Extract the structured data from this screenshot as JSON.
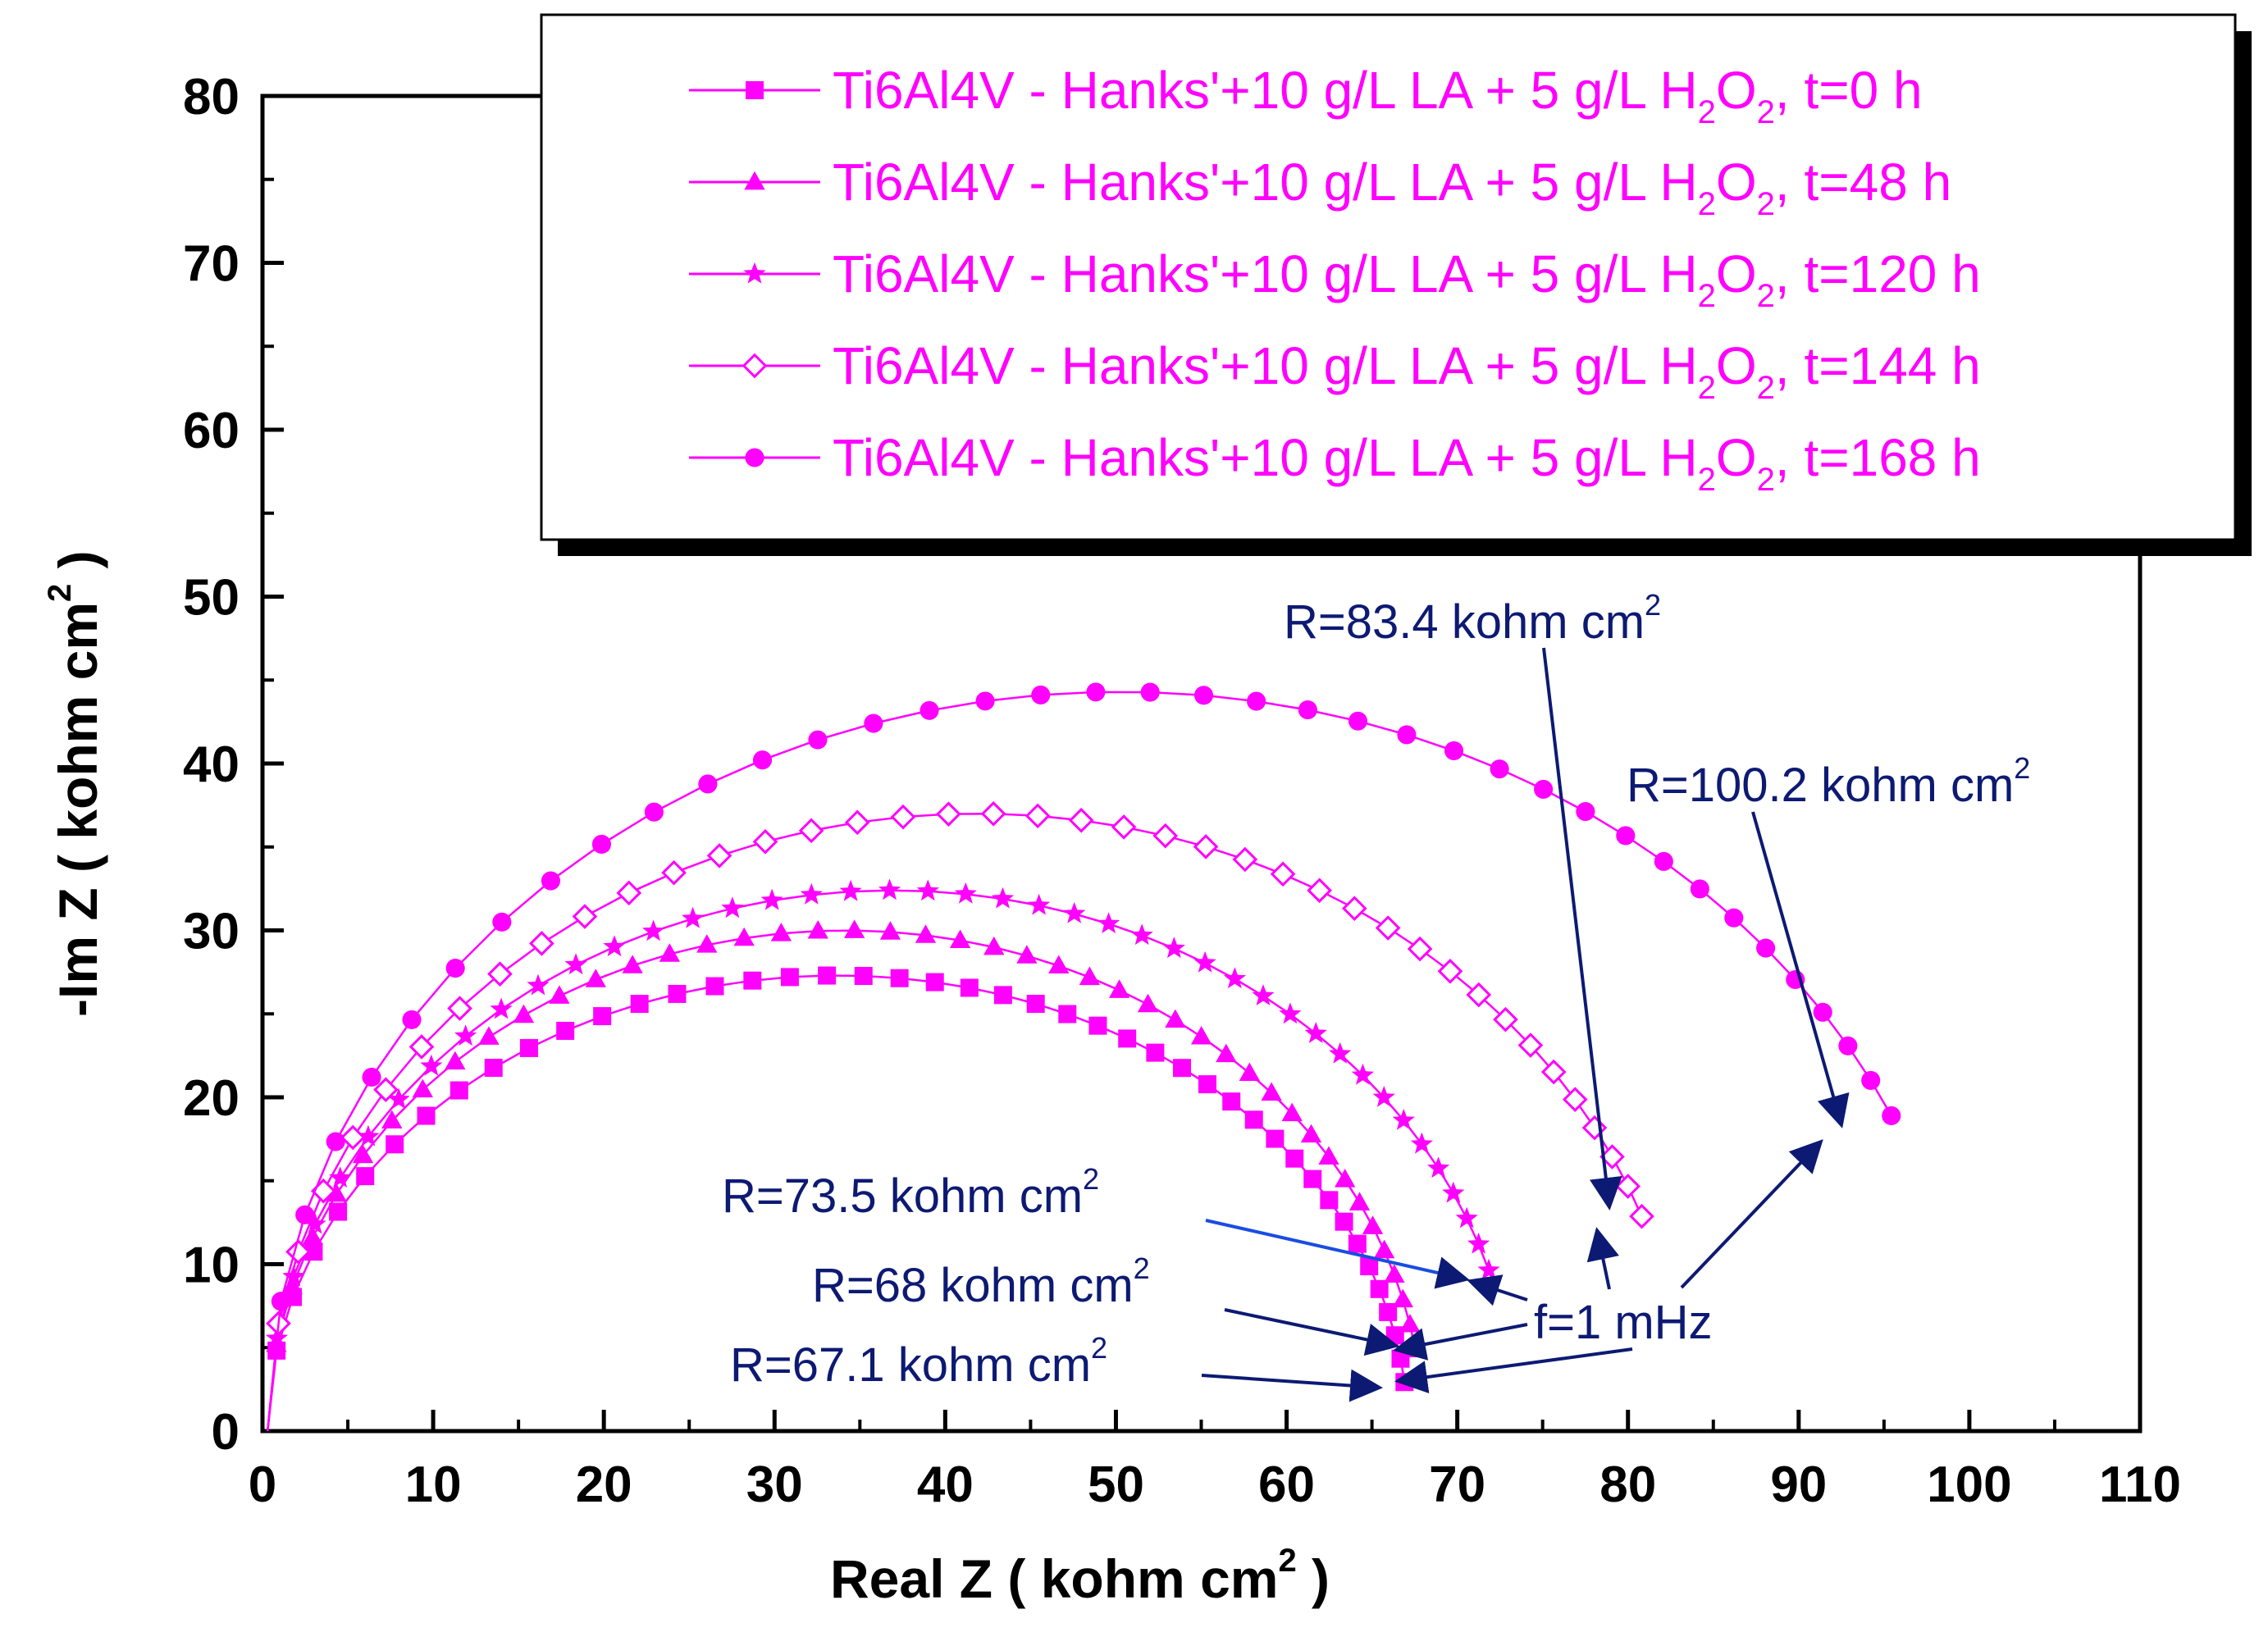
{
  "chart_data": {
    "type": "line",
    "title": "",
    "xlabel": "Real Z ( kohm cm",
    "ylabel": "-Im Z ( kohm cm",
    "unit_superscript": "2",
    "unit_close": " )",
    "xlim": [
      0,
      110
    ],
    "ylim": [
      0,
      80
    ],
    "x_ticks": [
      "0",
      "10",
      "20",
      "30",
      "40",
      "50",
      "60",
      "70",
      "80",
      "90",
      "100",
      "110"
    ],
    "y_ticks": [
      "0",
      "10",
      "20",
      "30",
      "40",
      "50",
      "60",
      "70",
      "80"
    ],
    "x_tick_values": [
      0,
      10,
      20,
      30,
      40,
      50,
      60,
      70,
      80,
      90,
      100,
      110
    ],
    "y_tick_values": [
      0,
      10,
      20,
      30,
      40,
      50,
      60,
      70,
      80
    ],
    "grid": false,
    "legend_position": "top-right",
    "series_color": "#ff00ff",
    "annotation_color": "#0d1a73",
    "series": [
      {
        "legend_prefix": "Ti6Al4V - Hanks'+10 g/L LA + 5 g/L H",
        "legend_sub1": "2",
        "legend_mid": "O",
        "legend_sub2": "2",
        "legend_suffix": ", t=0 h",
        "marker": "square",
        "R": 67.1,
        "peak": 27.3,
        "start_x": 0.3,
        "points": 44
      },
      {
        "legend_prefix": "Ti6Al4V - Hanks'+10 g/L LA + 5 g/L H",
        "legend_sub1": "2",
        "legend_mid": "O",
        "legend_sub2": "2",
        "legend_suffix": ", t=48 h",
        "marker": "triangle",
        "R": 68,
        "peak": 30.0,
        "start_x": 0.3,
        "points": 44
      },
      {
        "legend_prefix": "Ti6Al4V - Hanks'+10 g/L LA + 5 g/L H",
        "legend_sub1": "2",
        "legend_mid": "O",
        "legend_sub2": "2",
        "legend_suffix": ", t=120 h",
        "marker": "star",
        "R": 73.5,
        "peak": 32.4,
        "start_x": 0.3,
        "points": 42
      },
      {
        "legend_prefix": "Ti6Al4V - Hanks'+10 g/L LA + 5 g/L H",
        "legend_sub1": "2",
        "legend_mid": "O",
        "legend_sub2": "2",
        "legend_suffix": ", t=144 h",
        "marker": "diamond-open",
        "R": 83.4,
        "peak": 37.0,
        "start_x": 0.3,
        "points": 40
      },
      {
        "legend_prefix": "Ti6Al4V - Hanks'+10 g/L LA + 5 g/L H",
        "legend_sub1": "2",
        "legend_mid": "O",
        "legend_sub2": "2",
        "legend_suffix": ", t=168 h",
        "marker": "circle",
        "R": 100.2,
        "peak": 44.3,
        "start_x": 0.3,
        "points": 38
      }
    ],
    "end_points": [
      {
        "x": 66.5,
        "y": 2.9
      },
      {
        "x": 67.0,
        "y": 4.8
      },
      {
        "x": 71.0,
        "y": 9.4
      },
      {
        "x": 80.0,
        "y": 12.6
      },
      {
        "x": 94.0,
        "y": 18.3
      }
    ],
    "annotations": [
      {
        "text": "R=83.4 kohm cm",
        "sup": "2"
      },
      {
        "text": "R=100.2 kohm cm",
        "sup": "2"
      },
      {
        "text": "R=73.5 kohm cm",
        "sup": "2"
      },
      {
        "text": "R=68 kohm cm",
        "sup": "2"
      },
      {
        "text": "R=67.1 kohm cm",
        "sup": "2"
      },
      {
        "text": "f=1 mHz",
        "sup": ""
      }
    ]
  }
}
